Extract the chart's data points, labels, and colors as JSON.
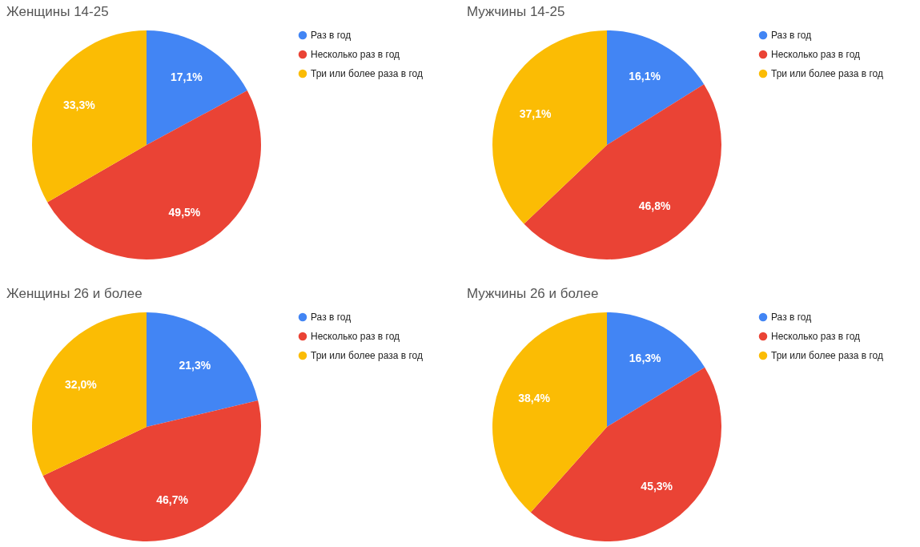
{
  "chart_data": [
    {
      "type": "pie",
      "title": "Женщины 14-25",
      "categories": [
        "Раз в год",
        "Несколько раз в год",
        "Три или более раза в год"
      ],
      "values": [
        17.1,
        49.5,
        33.3
      ],
      "colors": [
        "#4285f4",
        "#ea4335",
        "#fbbc04"
      ],
      "value_labels": [
        "17,1%",
        "49,5%",
        "33,3%"
      ],
      "legend": "right"
    },
    {
      "type": "pie",
      "title": "Мужчины 14-25",
      "categories": [
        "Раз в год",
        "Несколько раз в год",
        "Три или более раза в год"
      ],
      "values": [
        16.1,
        46.8,
        37.1
      ],
      "colors": [
        "#4285f4",
        "#ea4335",
        "#fbbc04"
      ],
      "value_labels": [
        "16,1%",
        "46,8%",
        "37,1%"
      ],
      "legend": "right"
    },
    {
      "type": "pie",
      "title": "Женщины 26 и более",
      "categories": [
        "Раз в год",
        "Несколько раз в год",
        "Три или более раза в год"
      ],
      "values": [
        21.3,
        46.7,
        32.0
      ],
      "colors": [
        "#4285f4",
        "#ea4335",
        "#fbbc04"
      ],
      "value_labels": [
        "21,3%",
        "46,7%",
        "32,0%"
      ],
      "legend": "right"
    },
    {
      "type": "pie",
      "title": "Мужчины 26 и более",
      "categories": [
        "Раз в год",
        "Несколько раз в год",
        "Три или более раза в год"
      ],
      "values": [
        16.3,
        45.3,
        38.4
      ],
      "colors": [
        "#4285f4",
        "#ea4335",
        "#fbbc04"
      ],
      "value_labels": [
        "16,3%",
        "45,3%",
        "38,4%"
      ],
      "legend": "right"
    }
  ]
}
